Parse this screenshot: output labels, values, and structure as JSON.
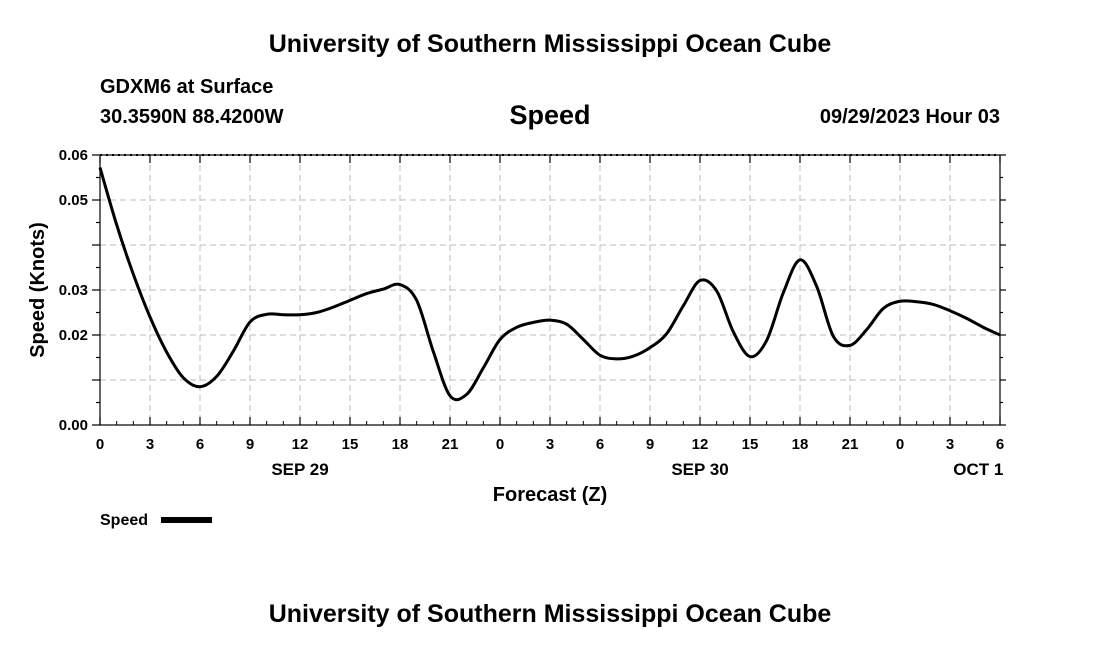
{
  "page": {
    "top_title": "University of Southern Mississippi Ocean Cube",
    "bottom_title": "University of Southern Mississippi Ocean Cube",
    "station": "GDXM6 at Surface",
    "location": "30.3590N  88.4200W",
    "variable": "Speed",
    "timestamp": "09/29/2023 Hour 03"
  },
  "chart_data": {
    "type": "line",
    "title": "Speed",
    "xlabel": "Forecast (Z)",
    "ylabel": "Speed (Knots)",
    "x_unit": "forecast hours from SEP 29 00Z",
    "xlim": [
      0,
      54
    ],
    "ylim": [
      0,
      0.06
    ],
    "grid": true,
    "x_ticks": [
      {
        "x": 0,
        "label": "0"
      },
      {
        "x": 3,
        "label": "3"
      },
      {
        "x": 6,
        "label": "6"
      },
      {
        "x": 9,
        "label": "9"
      },
      {
        "x": 12,
        "label": "12"
      },
      {
        "x": 15,
        "label": "15"
      },
      {
        "x": 18,
        "label": "18"
      },
      {
        "x": 21,
        "label": "21"
      },
      {
        "x": 24,
        "label": "0"
      },
      {
        "x": 27,
        "label": "3"
      },
      {
        "x": 30,
        "label": "6"
      },
      {
        "x": 33,
        "label": "9"
      },
      {
        "x": 36,
        "label": "12"
      },
      {
        "x": 39,
        "label": "15"
      },
      {
        "x": 42,
        "label": "18"
      },
      {
        "x": 45,
        "label": "21"
      },
      {
        "x": 48,
        "label": "0"
      },
      {
        "x": 51,
        "label": "3"
      },
      {
        "x": 54,
        "label": "6"
      }
    ],
    "y_ticks": [
      {
        "y": 0,
        "label": "0.00"
      },
      {
        "y": 0.02,
        "label": "0.02"
      },
      {
        "y": 0.03,
        "label": "0.03"
      },
      {
        "y": 0.05,
        "label": "0.05"
      },
      {
        "y": 0.06,
        "label": "0.06"
      }
    ],
    "date_labels": [
      {
        "x": 12,
        "label": "SEP 29"
      },
      {
        "x": 36,
        "label": "SEP 30"
      },
      {
        "x": 52.7,
        "label": "OCT 1"
      }
    ],
    "legend": {
      "label": "Speed",
      "position": "bottom-left"
    },
    "series": [
      {
        "name": "Speed",
        "color": "#000000",
        "points": [
          [
            0,
            0.0572
          ],
          [
            1,
            0.0445
          ],
          [
            2,
            0.0335
          ],
          [
            3,
            0.024
          ],
          [
            4,
            0.0162
          ],
          [
            5,
            0.0105
          ],
          [
            6,
            0.0085
          ],
          [
            7,
            0.0108
          ],
          [
            8,
            0.0164
          ],
          [
            9,
            0.0229
          ],
          [
            10,
            0.0246
          ],
          [
            11,
            0.0245
          ],
          [
            12,
            0.0245
          ],
          [
            13,
            0.025
          ],
          [
            14,
            0.0262
          ],
          [
            15,
            0.0277
          ],
          [
            16,
            0.0292
          ],
          [
            17,
            0.0302
          ],
          [
            18,
            0.0312
          ],
          [
            19,
            0.0277
          ],
          [
            20,
            0.0163
          ],
          [
            21,
            0.0065
          ],
          [
            22,
            0.0068
          ],
          [
            23,
            0.0127
          ],
          [
            24,
            0.019
          ],
          [
            25,
            0.0217
          ],
          [
            26,
            0.0228
          ],
          [
            27,
            0.0233
          ],
          [
            28,
            0.0224
          ],
          [
            29,
            0.019
          ],
          [
            30,
            0.0155
          ],
          [
            31,
            0.0147
          ],
          [
            32,
            0.0153
          ],
          [
            33,
            0.0172
          ],
          [
            34,
            0.0203
          ],
          [
            35,
            0.0265
          ],
          [
            36,
            0.0321
          ],
          [
            37,
            0.0298
          ],
          [
            38,
            0.0207
          ],
          [
            39,
            0.0152
          ],
          [
            40,
            0.0188
          ],
          [
            41,
            0.0294
          ],
          [
            42,
            0.0367
          ],
          [
            43,
            0.0308
          ],
          [
            44,
            0.0197
          ],
          [
            45,
            0.0177
          ],
          [
            46,
            0.0212
          ],
          [
            47,
            0.0259
          ],
          [
            48,
            0.0275
          ],
          [
            49,
            0.0274
          ],
          [
            50,
            0.0268
          ],
          [
            51,
            0.0254
          ],
          [
            52,
            0.0237
          ],
          [
            53,
            0.0217
          ],
          [
            54,
            0.02
          ]
        ]
      }
    ]
  }
}
